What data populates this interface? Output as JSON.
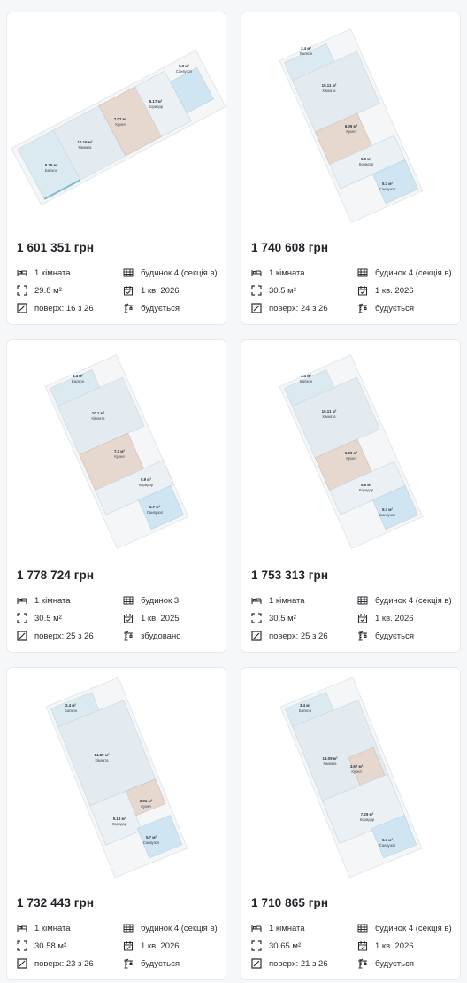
{
  "listings": [
    {
      "price": "1 601 351 грн",
      "rooms": "1 кімната",
      "building": "будинок 4 (секція в)",
      "area": "29.8 м²",
      "completion": "1 кв. 2026",
      "floor": "поверх: 16 з 26",
      "status": "будується",
      "plan": [
        {
          "area": "5.3 м²",
          "name": "Санвузол"
        },
        {
          "area": "5.17 м²",
          "name": "Коридор"
        },
        {
          "area": "7.07 м²",
          "name": "Кухня"
        },
        {
          "area": "10.16 м²",
          "name": "Кімната"
        },
        {
          "area": "5.35 м²",
          "name": "Балкон"
        }
      ]
    },
    {
      "price": "1 740 608 грн",
      "rooms": "1 кімната",
      "building": "будинок 4 (секція в)",
      "area": "30.5 м²",
      "completion": "1 кв. 2026",
      "floor": "поверх: 24 з 26",
      "status": "будується",
      "plan": [
        {
          "area": "3.4 м²",
          "name": "Балкон"
        },
        {
          "area": "10.11 м²",
          "name": "Кімната"
        },
        {
          "area": "6.09 м²",
          "name": "Кухня"
        },
        {
          "area": "5.9 м²",
          "name": "Коридор"
        },
        {
          "area": "5.7 м²",
          "name": "Санвузол"
        }
      ]
    },
    {
      "price": "1 778 724 грн",
      "rooms": "1 кімната",
      "building": "будинок 3",
      "area": "30.5 м²",
      "completion": "1 кв. 2025",
      "floor": "поверх: 25 з 26",
      "status": "збудовано",
      "plan": [
        {
          "area": "3.4 м²",
          "name": "Балкон"
        },
        {
          "area": "10.1 м²",
          "name": "Кімната"
        },
        {
          "area": "7.1 м²",
          "name": "Кухня"
        },
        {
          "area": "5.9 м²",
          "name": "Коридор"
        },
        {
          "area": "5.7 м²",
          "name": "Санвузол"
        }
      ]
    },
    {
      "price": "1 753 313 грн",
      "rooms": "1 кімната",
      "building": "будинок 4 (секція в)",
      "area": "30.5 м²",
      "completion": "1 кв. 2026",
      "floor": "поверх: 25 з 26",
      "status": "будується",
      "plan": [
        {
          "area": "3.4 м²",
          "name": "Балкон"
        },
        {
          "area": "10.11 м²",
          "name": "Кімната"
        },
        {
          "area": "6.09 м²",
          "name": "Кухня"
        },
        {
          "area": "5.9 м²",
          "name": "Коридор"
        },
        {
          "area": "5.7 м²",
          "name": "Санвузол"
        }
      ]
    },
    {
      "price": "1 732 443 грн",
      "rooms": "1 кімната",
      "building": "будинок 4 (секція в)",
      "area": "30.58 м²",
      "completion": "1 кв. 2026",
      "floor": "поверх: 23 з 26",
      "status": "будується",
      "plan": [
        {
          "area": "2.4 м²",
          "name": "Балкон"
        },
        {
          "area": "14.89 м²",
          "name": "Кімната"
        },
        {
          "area": "3.31 м²",
          "name": "Кухня"
        },
        {
          "area": "5.18 м²",
          "name": "Коридор"
        },
        {
          "area": "5.7 м²",
          "name": "Санвузол"
        }
      ]
    },
    {
      "price": "1 710 865 грн",
      "rooms": "1 кімната",
      "building": "будинок 4 (секція в)",
      "area": "30.65 м²",
      "completion": "1 кв. 2026",
      "floor": "поверх: 21 з 26",
      "status": "будується",
      "plan": [
        {
          "area": "3.4 м²",
          "name": "Балкон"
        },
        {
          "area": "13.09 м²",
          "name": "Кімната"
        },
        {
          "area": "3.67 м²",
          "name": "Кухня"
        },
        {
          "area": "7.29 м²",
          "name": "Коридор"
        },
        {
          "area": "5.7 м²",
          "name": "Санвузол"
        }
      ]
    }
  ],
  "icons": {
    "rooms": "bed-icon",
    "building": "building-icon",
    "area": "area-icon",
    "completion": "calendar-icon",
    "floor": "floor-icon",
    "status": "crane-icon"
  },
  "colors": {
    "room_fill": "#e3ebf0",
    "kitchen_fill": "#e6d8cf",
    "bathroom_fill": "#cfe6f2",
    "balcony_fill": "#dbe9f0",
    "text": "#1f2328"
  }
}
